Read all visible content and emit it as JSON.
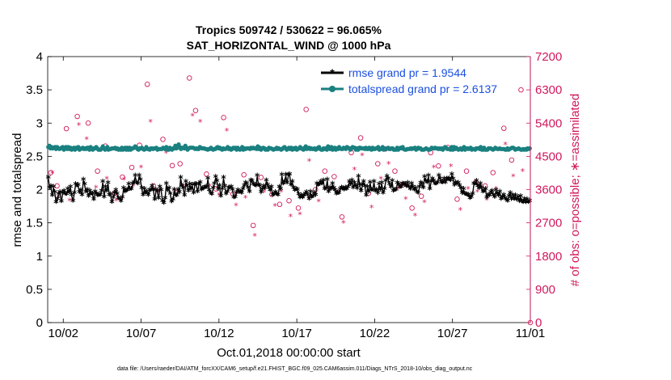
{
  "chart_data": {
    "type": "line",
    "title_line1": "Tropics 509742 / 530622 = 96.065%",
    "title_line2": "SAT_HORIZONTAL_WIND @ 1000 hPa",
    "xlabel": "Oct.01,2018 00:00:00 start",
    "ylabel_left": "rmse and totalspread",
    "ylabel_right": "# of obs: o=possible; ∗=assimilated",
    "xlim": [
      0,
      31
    ],
    "ylim_left": [
      0,
      4
    ],
    "ylim_right": [
      0,
      7200
    ],
    "x_tick_values": [
      1,
      6,
      11,
      16,
      21,
      26,
      31
    ],
    "x_tick_labels": [
      "10/02",
      "10/07",
      "10/12",
      "10/17",
      "10/22",
      "10/27",
      "11/01"
    ],
    "y_left_ticks": [
      "0",
      "0.5",
      "1",
      "1.5",
      "2",
      "2.5",
      "3",
      "3.5",
      "4"
    ],
    "y_right_ticks": [
      "0",
      "900",
      "1800",
      "2700",
      "3600",
      "4500",
      "5400",
      "6300",
      "7200"
    ],
    "steps_per_day": 4,
    "series": [
      {
        "name": "rmse",
        "legend": "rmse grand pr = 1.9544",
        "color": "#000000",
        "marker": "star",
        "values": [
          2.17,
          2.02,
          2.04,
          1.9,
          2.03,
          1.95,
          1.8,
          1.85,
          1.93,
          1.95,
          1.81,
          1.94,
          1.97,
          1.93,
          1.92,
          2.0,
          1.95,
          2.03,
          1.91,
          1.82,
          1.94,
          2.07,
          2.05,
          2.06,
          1.95,
          1.98,
          1.91,
          2.14,
          2.07,
          1.96,
          1.99,
          1.89,
          1.97,
          1.93,
          1.93,
          1.84,
          1.96,
          1.93,
          1.9,
          1.91,
          1.91,
          1.97,
          2.11,
          1.88,
          2.03,
          1.97,
          2.09,
          1.91,
          1.92,
          1.8,
          1.87,
          1.94,
          1.98,
          1.93,
          1.86,
          1.85,
          1.82,
          1.87,
          2.01,
          1.96,
          1.98,
          1.98,
          2.07,
          2.0,
          2.0,
          2.08,
          2.1,
          2.2,
          2.1,
          2.08,
          2.2,
          2.14,
          2.01,
          1.91,
          2.0,
          1.94,
          1.96,
          1.91,
          1.98,
          1.98,
          2.04,
          1.99,
          1.84,
          1.98,
          1.97,
          1.86,
          2.03,
          1.98,
          1.82,
          1.79,
          1.86,
          2.08,
          1.98,
          2.01,
          1.93,
          1.81,
          1.84,
          1.99,
          1.91,
          1.9,
          1.99,
          1.95,
          2.17,
          2.05,
          2.01,
          1.9,
          2.11,
          2.04,
          1.97,
          2.07,
          2.0,
          2.06,
          1.94,
          2.07,
          2.07,
          1.96,
          2.07,
          2.1,
          1.99,
          2.01,
          2.01,
          2.03,
          2.03,
          2.16,
          1.98,
          1.94,
          1.92,
          2.01,
          2.08,
          2.18,
          2.12,
          2.0,
          2.05,
          1.89,
          2.0,
          2.17,
          2.04,
          1.93,
          1.96,
          2.02,
          2.02,
          2.03,
          1.99,
          1.87,
          1.88,
          1.94,
          1.98,
          1.96,
          1.96,
          1.94,
          2.0,
          2.05,
          2.09,
          2.08,
          2.02,
          1.96,
          2.13,
          2.12,
          2.07,
          2.06,
          2.05,
          2.2,
          2.06,
          2.05,
          1.95,
          2.0,
          2.04,
          2.01,
          2.13,
          2.06,
          2.02,
          1.98,
          2.03,
          1.91,
          1.92,
          1.95,
          1.93,
          1.91,
          2.03,
          2.0,
          2.21,
          2.08,
          2.11,
          2.21,
          2.09,
          2.21,
          2.22,
          2.06,
          2.11,
          2.02,
          1.98,
          2.0,
          1.99,
          1.92,
          1.87,
          1.9,
          1.87,
          1.9,
          1.93,
          1.95,
          1.91,
          1.85,
          1.96,
          1.88,
          1.89,
          1.94,
          1.91,
          2.08,
          2.06,
          2.07,
          2.11,
          2.08,
          2.13,
          2.0,
          2.01,
          2.14,
          1.96,
          2.02,
          2.0,
          2.08,
          2.01,
          1.98,
          1.93,
          1.94,
          1.94,
          2.0,
          2.02,
          2.01,
          1.99,
          2.02,
          2.0,
          2.03,
          2.11,
          2.07,
          2.13,
          2.02,
          2.09,
          2.05,
          2.01,
          2.19,
          2.06,
          1.97,
          2.06,
          2.11,
          2.04,
          1.9,
          2.03,
          1.96,
          2.1,
          1.99,
          1.99,
          2.11,
          1.97,
          1.99,
          1.94,
          2.07,
          1.99,
          2.09,
          1.94,
          2.0,
          2.12,
          2.19,
          2.15,
          2.07,
          2.03,
          2.12,
          1.97,
          1.99,
          1.99,
          2.09,
          2.07,
          2.03,
          2.03,
          2.08,
          2.07,
          2.07,
          2.04,
          2.09,
          2.03,
          2.0,
          2.08,
          2.03,
          1.99,
          2.01,
          1.96,
          1.94,
          2.03,
          2.09,
          2.08,
          2.02,
          2.18,
          2.12,
          2.1,
          2.2,
          2.0,
          2.11,
          2.15,
          2.12,
          2.08,
          2.08,
          2.1,
          2.2,
          2.15,
          2.1,
          2.1,
          2.15,
          2.1,
          2.15,
          2.15,
          2.15,
          2.13,
          2.22,
          2.15,
          2.06,
          2.1,
          2.08,
          2.09,
          2.05,
          2.01,
          1.94,
          2.0,
          1.93,
          1.92,
          1.91,
          1.91,
          1.86,
          1.88,
          1.93,
          2.08,
          2.08,
          2.12,
          2.04,
          2.01,
          2.08,
          2.02,
          1.96,
          1.97,
          2.0,
          1.87,
          1.91,
          1.9,
          1.95,
          1.97,
          1.91,
          1.88,
          1.98,
          1.93,
          1.9,
          1.96,
          1.85,
          1.88,
          1.91,
          1.86,
          1.84,
          1.82,
          1.89,
          1.94,
          1.85,
          1.9,
          1.85,
          1.9,
          1.84,
          1.88,
          1.82,
          1.89,
          1.81,
          1.8,
          1.85,
          1.8,
          1.84,
          1.8,
          1.82
        ]
      },
      {
        "name": "totalspread",
        "legend": "totalspread grand pr = 2.6137",
        "color": "#1a8080",
        "marker": "circle",
        "values": [
          2.64,
          2.66,
          2.62,
          2.64,
          2.62,
          2.63,
          2.64,
          2.61,
          2.64,
          2.62,
          2.61,
          2.62,
          2.63,
          2.64,
          2.6,
          2.62,
          2.64,
          2.61,
          2.64,
          2.61,
          2.63,
          2.6,
          2.61,
          2.63,
          2.6,
          2.63,
          2.62,
          2.64,
          2.6,
          2.61,
          2.62,
          2.63,
          2.61,
          2.62,
          2.61,
          2.63,
          2.63,
          2.6,
          2.64,
          2.62,
          2.6,
          2.62,
          2.62,
          2.64,
          2.62,
          2.6,
          2.6,
          2.6,
          2.62,
          2.65,
          2.62,
          2.6,
          2.61,
          2.64,
          2.6,
          2.61,
          2.61,
          2.62,
          2.62,
          2.62,
          2.63,
          2.61,
          2.62,
          2.6,
          2.61,
          2.6,
          2.63,
          2.6,
          2.62,
          2.63,
          2.6,
          2.63,
          2.6,
          2.63,
          2.6,
          2.62,
          2.62,
          2.63,
          2.65,
          2.63,
          2.61,
          2.6,
          2.62,
          2.62,
          2.63,
          2.61,
          2.6,
          2.61,
          2.64,
          2.61,
          2.61,
          2.6,
          2.62,
          2.62,
          2.61,
          2.62,
          2.62,
          2.63,
          2.6,
          2.61,
          2.61,
          2.61,
          2.61,
          2.63,
          2.62,
          2.61,
          2.64,
          2.6,
          2.6,
          2.63,
          2.61,
          2.6,
          2.62,
          2.62,
          2.66,
          2.62,
          2.63,
          2.68,
          2.64,
          2.61,
          2.63,
          2.63,
          2.62,
          2.66,
          2.63,
          2.6,
          2.62,
          2.63,
          2.63,
          2.63,
          2.63,
          2.62,
          2.61,
          2.62,
          2.61,
          2.61,
          2.64,
          2.63,
          2.62,
          2.62,
          2.62,
          2.61,
          2.61,
          2.6,
          2.61,
          2.61,
          2.63,
          2.61,
          2.6,
          2.61,
          2.61,
          2.63,
          2.64,
          2.62,
          2.63,
          2.61,
          2.6,
          2.62,
          2.61,
          2.61,
          2.62,
          2.64,
          2.61,
          2.62,
          2.6,
          2.61,
          2.63,
          2.62,
          2.63,
          2.6,
          2.63,
          2.61,
          2.6,
          2.61,
          2.64,
          2.6,
          2.62,
          2.61,
          2.62,
          2.62,
          2.62,
          2.61,
          2.63,
          2.62,
          2.63,
          2.62,
          2.62,
          2.61,
          2.65,
          2.61,
          2.63,
          2.6,
          2.62,
          2.63,
          2.62,
          2.6,
          2.61,
          2.6,
          2.63,
          2.62,
          2.62,
          2.61,
          2.6,
          2.61,
          2.61,
          2.63,
          2.61,
          2.62,
          2.61,
          2.6,
          2.61,
          2.63,
          2.64,
          2.62,
          2.6,
          2.61,
          2.63,
          2.61,
          2.63,
          2.6,
          2.62,
          2.61,
          2.63,
          2.6,
          2.61,
          2.62,
          2.64,
          2.62,
          2.61,
          2.6,
          2.63,
          2.65,
          2.61,
          2.62,
          2.63,
          2.61,
          2.62,
          2.61,
          2.61,
          2.62,
          2.6,
          2.61,
          2.63,
          2.64,
          2.61,
          2.6,
          2.6,
          2.62,
          2.61,
          2.62,
          2.6,
          2.65,
          2.62,
          2.61,
          2.64,
          2.6,
          2.61,
          2.63,
          2.6,
          2.62,
          2.61,
          2.64,
          2.62,
          2.61,
          2.61,
          2.63,
          2.62,
          2.61,
          2.64,
          2.63,
          2.62,
          2.6,
          2.62,
          2.64,
          2.63,
          2.63,
          2.6,
          2.62,
          2.6,
          2.63,
          2.63,
          2.62,
          2.62,
          2.62,
          2.61,
          2.63,
          2.61,
          2.61,
          2.63,
          2.61,
          2.6,
          2.63,
          2.61,
          2.61,
          2.62,
          2.62,
          2.64,
          2.6,
          2.61,
          2.61,
          2.64,
          2.6,
          2.61,
          2.61,
          2.62,
          2.63,
          2.61,
          2.61,
          2.62,
          2.62,
          2.6,
          2.6,
          2.6,
          2.63,
          2.6,
          2.62,
          2.63,
          2.62,
          2.64,
          2.61,
          2.6,
          2.6,
          2.61,
          2.61,
          2.61,
          2.62,
          2.61,
          2.62,
          2.62,
          2.63,
          2.6,
          2.61,
          2.63,
          2.62,
          2.62,
          2.6,
          2.6,
          2.6,
          2.61,
          2.62,
          2.61,
          2.6,
          2.6,
          2.61,
          2.63,
          2.62,
          2.62,
          2.63,
          2.62,
          2.62,
          2.61,
          2.62,
          2.61,
          2.62,
          2.6,
          2.62,
          2.64,
          2.63,
          2.61,
          2.61,
          2.61,
          2.6,
          2.64,
          2.6,
          2.64,
          2.61,
          2.63,
          2.61,
          2.6,
          2.61,
          2.62,
          2.6,
          2.62,
          2.64,
          2.6,
          2.62,
          2.62,
          2.61,
          2.62,
          2.63,
          2.6,
          2.61,
          2.61,
          2.6,
          2.62,
          2.62,
          2.62,
          2.61,
          2.64,
          2.6,
          2.6,
          2.63,
          2.6,
          2.6,
          2.6,
          2.62,
          2.62,
          2.62,
          2.61,
          2.6,
          2.61,
          2.63,
          2.62,
          2.61,
          2.61,
          2.62,
          2.61,
          2.61,
          2.61,
          2.61,
          2.6,
          2.6,
          2.62,
          2.6,
          2.61,
          2.62,
          2.63,
          2.63,
          2.62,
          2.6,
          2.61,
          2.61,
          2.62,
          2.61,
          2.6,
          2.6,
          2.61,
          2.6,
          2.61,
          2.6,
          2.62,
          2.61,
          2.62
        ]
      }
    ],
    "obs_possible_points": [
      [
        0.2,
        4060
      ],
      [
        0.6,
        3700
      ],
      [
        1.2,
        5250
      ],
      [
        1.9,
        5580
      ],
      [
        2.6,
        5400
      ],
      [
        3.2,
        4100
      ],
      [
        3.7,
        4780
      ],
      [
        4.3,
        3500
      ],
      [
        4.8,
        3940
      ],
      [
        5.4,
        4200
      ],
      [
        5.9,
        4800
      ],
      [
        6.4,
        6450
      ],
      [
        6.8,
        3700
      ],
      [
        7.4,
        4960
      ],
      [
        8.0,
        4250
      ],
      [
        8.5,
        4300
      ],
      [
        9.1,
        6620
      ],
      [
        9.5,
        5740
      ],
      [
        10.2,
        4020
      ],
      [
        10.8,
        3620
      ],
      [
        11.3,
        5550
      ],
      [
        11.9,
        3480
      ],
      [
        12.6,
        4000
      ],
      [
        13.2,
        2630
      ],
      [
        13.7,
        3930
      ],
      [
        14.4,
        3470
      ],
      [
        14.9,
        3200
      ],
      [
        15.5,
        3300
      ],
      [
        16.1,
        3100
      ],
      [
        16.6,
        5770
      ],
      [
        17.2,
        3600
      ],
      [
        17.8,
        4100
      ],
      [
        18.4,
        3950
      ],
      [
        18.9,
        2860
      ],
      [
        19.5,
        4600
      ],
      [
        20.1,
        5000
      ],
      [
        20.6,
        3500
      ],
      [
        21.2,
        4300
      ],
      [
        21.7,
        4700
      ],
      [
        22.3,
        4100
      ],
      [
        22.8,
        3730
      ],
      [
        23.4,
        3100
      ],
      [
        24.0,
        3420
      ],
      [
        24.6,
        4600
      ],
      [
        25.1,
        4240
      ],
      [
        25.7,
        4740
      ],
      [
        26.3,
        3340
      ],
      [
        26.9,
        4100
      ],
      [
        27.5,
        3800
      ],
      [
        28.1,
        3700
      ],
      [
        28.6,
        4060
      ],
      [
        29.3,
        5260
      ],
      [
        29.8,
        4400
      ],
      [
        30.4,
        6300
      ]
    ],
    "obs_assim_points": [
      [
        0.3,
        4050
      ],
      [
        0.7,
        3400
      ],
      [
        1.4,
        3300
      ],
      [
        2.0,
        5350
      ],
      [
        2.5,
        4970
      ],
      [
        3.1,
        3650
      ],
      [
        3.8,
        3900
      ],
      [
        4.4,
        3300
      ],
      [
        4.9,
        3870
      ],
      [
        5.5,
        3700
      ],
      [
        6.0,
        4200
      ],
      [
        6.6,
        5440
      ],
      [
        7.1,
        3540
      ],
      [
        7.6,
        4600
      ],
      [
        8.2,
        3550
      ],
      [
        8.7,
        3700
      ],
      [
        9.3,
        5600
      ],
      [
        9.8,
        5440
      ],
      [
        10.4,
        3700
      ],
      [
        11.0,
        3460
      ],
      [
        11.5,
        5200
      ],
      [
        12.1,
        3170
      ],
      [
        12.7,
        3380
      ],
      [
        13.3,
        2350
      ],
      [
        13.9,
        3530
      ],
      [
        14.6,
        3160
      ],
      [
        15.0,
        3550
      ],
      [
        15.6,
        2880
      ],
      [
        16.2,
        2930
      ],
      [
        16.8,
        4380
      ],
      [
        17.4,
        3280
      ],
      [
        18.0,
        3620
      ],
      [
        18.6,
        3550
      ],
      [
        19.0,
        2700
      ],
      [
        19.7,
        4150
      ],
      [
        20.2,
        4530
      ],
      [
        20.8,
        3120
      ],
      [
        21.4,
        3900
      ],
      [
        21.9,
        4300
      ],
      [
        22.5,
        3620
      ],
      [
        23.0,
        3350
      ],
      [
        23.6,
        2900
      ],
      [
        24.2,
        3260
      ],
      [
        24.8,
        4200
      ],
      [
        25.3,
        3820
      ],
      [
        25.9,
        4240
      ],
      [
        26.5,
        3050
      ],
      [
        27.0,
        3620
      ],
      [
        27.6,
        3550
      ],
      [
        28.2,
        3330
      ],
      [
        28.8,
        3620
      ],
      [
        29.4,
        4830
      ],
      [
        29.9,
        3960
      ],
      [
        30.5,
        4100
      ]
    ],
    "legend_location": "top-right"
  },
  "footer": {
    "data_file": "data file: /Users/raeder/DAI/ATM_forcXX/CAM6_setup/f.e21.FHIST_BGC.f09_025.CAM6assim.011/Diags_NTrS_2018-10/obs_diag_output.nc"
  },
  "colors": {
    "rmse": "#000000",
    "totalspread": "#1a8080",
    "obs": "#d1185c",
    "legend_text": "#1a4fe0"
  }
}
